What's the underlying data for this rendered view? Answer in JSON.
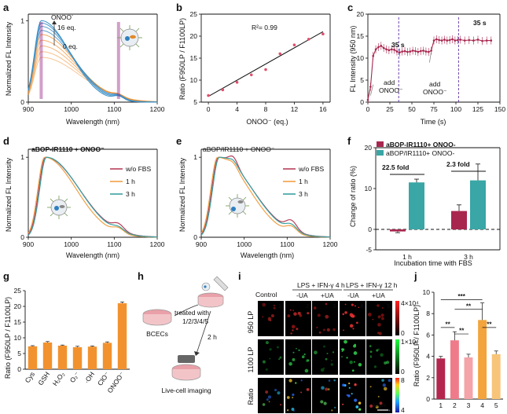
{
  "panels": {
    "a": {
      "letter": "a",
      "ylabel": "Normalized FL Intensity",
      "xlabel": "Wavelength (nm)",
      "xticks": [
        "900",
        "1000",
        "1100",
        "1200"
      ],
      "yticks": [
        "0",
        "1"
      ],
      "annot_top": "ONOO",
      "annot_top_sup": "-",
      "annot_mid": "16 eq.",
      "annot_low": "0 eq.",
      "colors": {
        "high": "#3a8fc7",
        "low": "#f28c28",
        "marker": "#9a2a8a"
      }
    },
    "b": {
      "letter": "b",
      "r2": "R²= 0.99",
      "ylabel": "Ratio (F950LP / F1100LP)",
      "xlabel": "ONOO⁻ (eq.)",
      "xticks": [
        "0",
        "4",
        "8",
        "12",
        "16"
      ],
      "yticks": [
        "5",
        "10",
        "15",
        "20",
        "25"
      ]
    },
    "c": {
      "letter": "c",
      "ylabel": "FL Intensity (950 nm)",
      "xlabel": "Time (s)",
      "xticks": [
        "0",
        "25",
        "50",
        "75",
        "100",
        "125",
        "150"
      ],
      "yticks": [
        "0",
        "5",
        "10",
        "15",
        "20"
      ],
      "t1": "35 s",
      "t2": "35 s",
      "add1": "add",
      "add1b": "ONOO⁻",
      "add2": "add",
      "add2b": "ONOO⁻"
    },
    "d": {
      "letter": "d",
      "title": "aBOP-IR1110 + ONOO⁻",
      "ylabel": "Normalized FL Intensity",
      "xlabel": "Wavelength (nm)",
      "xticks": [
        "900",
        "1000",
        "1100",
        "1200"
      ],
      "yticks": [
        "0",
        "1"
      ],
      "legend": [
        "w/o FBS",
        "1 h",
        "3 h"
      ]
    },
    "e": {
      "letter": "e",
      "title": "aBOP/IR1110 + ONOO⁻",
      "ylabel": "Normalized FL Intensity",
      "xlabel": "Wavelength (nm)",
      "xticks": [
        "900",
        "1000",
        "1100",
        "1200"
      ],
      "yticks": [
        "0",
        "1"
      ],
      "legend": [
        "w/o FBS",
        "1 h",
        "3 h"
      ]
    },
    "f": {
      "letter": "f",
      "ylabel": "Change of ratio (%)",
      "xlabel": "Incubation time with FBS",
      "xticks": [
        "1 h",
        "3 h"
      ],
      "yticks": [
        "-5",
        "0",
        "10",
        "20"
      ],
      "legend": [
        "aBOP-IR1110+ ONOO-",
        "aBOP/IR1110+ ONOO-"
      ],
      "fold1": "22.5 fold",
      "fold2": "2.3 fold"
    },
    "g": {
      "letter": "g",
      "ylabel": "Ratio (F950LP / F1100LP)",
      "yticks": [
        "0",
        "5",
        "10",
        "15",
        "20",
        "25"
      ],
      "categories": [
        "Cys",
        "GSH",
        "H₂O₂",
        "O₂⁻",
        "·OH",
        "ClO⁻",
        "ONOO⁻"
      ]
    },
    "h": {
      "letter": "h",
      "cells": "BCECs",
      "treated": "treated with",
      "groups": "1/2/3/4/5",
      "time": "2 h",
      "imaging": "Live-cell imaging"
    },
    "i": {
      "letter": "i",
      "control": "Control",
      "lps4": "LPS + IFN-γ 4 h",
      "lps12": "LPS + IFN-γ 12 h",
      "ua_minus": "-UA",
      "ua_plus": "+UA",
      "rows": [
        "950 LP",
        "1100 LP",
        "Ratio"
      ],
      "nums": [
        "1",
        "2",
        "3",
        "4",
        "5"
      ],
      "cb1_top": "4×10⁴",
      "cb1_bot": "0",
      "cb2_top": "1×10⁴",
      "cb2_bot": "0",
      "cb3_top": "8",
      "cb3_bot": "4",
      "scale": "50 μm"
    },
    "j": {
      "letter": "j",
      "ylabel": "Ratio (F950LP / F1100LP)",
      "xticks": [
        "1",
        "2",
        "3",
        "4",
        "5"
      ],
      "yticks": [
        "0",
        "2",
        "4",
        "6",
        "8",
        "10"
      ],
      "sig": [
        "***",
        "**",
        "**",
        "**",
        "**"
      ]
    }
  },
  "chart_data": [
    {
      "panel": "a",
      "type": "line",
      "title": "",
      "xlabel": "Wavelength (nm)",
      "ylabel": "Normalized FL Intensity",
      "xlim": [
        900,
        1200
      ],
      "ylim": [
        0,
        1.08
      ],
      "series": [
        {
          "name": "0 eq.",
          "peak": 930,
          "amp": 0.55
        },
        {
          "name": "2 eq.",
          "peak": 930,
          "amp": 0.62
        },
        {
          "name": "4 eq.",
          "peak": 930,
          "amp": 0.69
        },
        {
          "name": "6 eq.",
          "peak": 930,
          "amp": 0.76
        },
        {
          "name": "8 eq.",
          "peak": 930,
          "amp": 0.83
        },
        {
          "name": "10 eq.",
          "peak": 930,
          "amp": 0.88
        },
        {
          "name": "12 eq.",
          "peak": 930,
          "amp": 0.93
        },
        {
          "name": "14 eq.",
          "peak": 930,
          "amp": 0.97
        },
        {
          "name": "16 eq.",
          "peak": 930,
          "amp": 1.0
        }
      ],
      "markers_nm": [
        930,
        1110
      ]
    },
    {
      "panel": "b",
      "type": "scatter",
      "xlabel": "ONOO⁻ (eq.)",
      "ylabel": "Ratio (F950LP / F1100LP)",
      "xlim": [
        -1,
        17
      ],
      "ylim": [
        5,
        25
      ],
      "x": [
        0,
        2,
        4,
        6,
        8,
        10,
        12,
        14,
        16
      ],
      "y": [
        6.5,
        7.8,
        9.5,
        11.2,
        12.4,
        16.0,
        18.0,
        19.3,
        20.5
      ],
      "fit": {
        "slope": 0.92,
        "intercept": 6.3
      },
      "r2": 0.99
    },
    {
      "panel": "c",
      "type": "line",
      "xlabel": "Time (s)",
      "ylabel": "FL Intensity (950 nm)",
      "xlim": [
        0,
        150
      ],
      "ylim": [
        0,
        20
      ],
      "x": [
        0,
        3,
        6,
        9,
        12,
        15,
        18,
        21,
        24,
        27,
        30,
        33,
        36,
        39,
        42,
        45,
        48,
        51,
        54,
        57,
        60,
        63,
        66,
        69,
        72,
        75,
        78,
        81,
        84,
        87,
        90,
        93,
        96,
        99,
        102,
        105,
        110,
        115,
        120,
        125,
        130,
        135,
        140
      ],
      "y": [
        0.5,
        3.5,
        10.5,
        12.0,
        12.5,
        12.8,
        12.3,
        12.0,
        11.8,
        12.0,
        11.9,
        11.5,
        11.3,
        11.5,
        11.6,
        11.4,
        11.5,
        11.7,
        11.6,
        11.4,
        11.6,
        11.7,
        11.5,
        11.4,
        11.7,
        14.0,
        14.3,
        14.1,
        14.0,
        14.2,
        14.0,
        14.1,
        14.3,
        14.0,
        14.1,
        14.2,
        14.0,
        14.1,
        14.0,
        14.2,
        13.9,
        14.0,
        14.0
      ],
      "events_s": [
        35,
        103
      ]
    },
    {
      "panel": "d",
      "type": "line",
      "xlabel": "Wavelength (nm)",
      "ylabel": "Normalized FL Intensity",
      "xlim": [
        900,
        1200
      ],
      "ylim": [
        0,
        1.1
      ],
      "series": [
        {
          "name": "w/o FBS",
          "color": "#b7405c"
        },
        {
          "name": "1 h",
          "color": "#f0a045"
        },
        {
          "name": "3 h",
          "color": "#3aa0a0"
        }
      ]
    },
    {
      "panel": "e",
      "type": "line",
      "xlabel": "Wavelength (nm)",
      "ylabel": "Normalized FL Intensity",
      "xlim": [
        900,
        1200
      ],
      "ylim": [
        0,
        1.1
      ],
      "series": [
        {
          "name": "w/o FBS",
          "color": "#b7405c"
        },
        {
          "name": "1 h",
          "color": "#f0a045"
        },
        {
          "name": "3 h",
          "color": "#3aa0a0"
        }
      ]
    },
    {
      "panel": "f",
      "type": "bar",
      "categories": [
        "1 h",
        "3 h"
      ],
      "ylim": [
        -5,
        20
      ],
      "series": [
        {
          "name": "aBOP-IR1110+ ONOO-",
          "color": "#a8274f",
          "values": [
            -0.5,
            4.5
          ],
          "err": [
            0.3,
            1.5
          ]
        },
        {
          "name": "aBOP/IR1110+ ONOO-",
          "color": "#3aa6a6",
          "values": [
            11.5,
            12.0
          ],
          "err": [
            0.8,
            4.0
          ]
        }
      ]
    },
    {
      "panel": "g",
      "type": "bar",
      "categories": [
        "Cys",
        "GSH",
        "H₂O₂",
        "O₂⁻",
        "·OH",
        "ClO⁻",
        "ONOO⁻"
      ],
      "values": [
        7.3,
        8.5,
        7.5,
        7.0,
        7.2,
        8.4,
        21.0
      ],
      "err": [
        0.2,
        0.3,
        0.2,
        0.3,
        0.2,
        0.3,
        0.4
      ],
      "ylim": [
        0,
        25
      ],
      "color": "#f2922e"
    },
    {
      "panel": "j",
      "type": "bar",
      "categories": [
        "1",
        "2",
        "3",
        "4",
        "5"
      ],
      "values": [
        3.8,
        5.5,
        3.9,
        7.4,
        4.2
      ],
      "err": [
        0.2,
        0.8,
        0.3,
        1.6,
        0.3
      ],
      "colors": [
        "#b5264e",
        "#ef7b8a",
        "#f4a3a8",
        "#f3a43c",
        "#f7c479"
      ],
      "ylim": [
        0,
        10
      ]
    }
  ]
}
